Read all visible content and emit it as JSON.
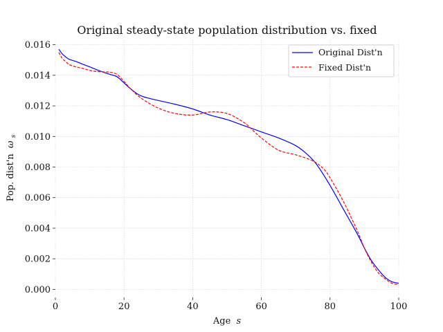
{
  "chart_data": {
    "type": "line",
    "title": "Original steady-state population distribution vs. fixed",
    "xlabel": "Age",
    "xlabel_symbol": "s",
    "ylabel": "Pop. dist'n",
    "ylabel_symbol": "ω",
    "ylabel_subscript": "s",
    "xlim": [
      0,
      100
    ],
    "ylim": [
      -0.0003,
      0.0163
    ],
    "xticks": [
      0,
      20,
      40,
      60,
      80,
      100
    ],
    "xtick_labels": [
      "0",
      "20",
      "40",
      "60",
      "80",
      "100"
    ],
    "yticks": [
      0.0,
      0.002,
      0.004,
      0.006,
      0.008,
      0.01,
      0.012,
      0.014,
      0.016
    ],
    "ytick_labels": [
      "0.000",
      "0.002",
      "0.004",
      "0.006",
      "0.008",
      "0.010",
      "0.012",
      "0.014",
      "0.016"
    ],
    "grid": true,
    "legend_position": "top-right",
    "series": [
      {
        "name": "Original Dist'n",
        "color": "#0000ff",
        "style": "solid",
        "x": [
          1,
          2,
          3,
          4,
          6,
          8,
          10,
          12,
          14,
          16,
          18,
          20,
          22,
          25,
          30,
          35,
          40,
          45,
          50,
          55,
          60,
          65,
          70,
          73,
          76,
          80,
          84,
          88,
          90,
          92,
          94,
          96,
          98,
          100
        ],
        "y": [
          0.0157,
          0.0154,
          0.0152,
          0.01505,
          0.0149,
          0.01472,
          0.01455,
          0.01437,
          0.0142,
          0.01405,
          0.0139,
          0.0135,
          0.0131,
          0.01265,
          0.01235,
          0.0121,
          0.0118,
          0.0114,
          0.0111,
          0.0107,
          0.0103,
          0.0099,
          0.0094,
          0.0089,
          0.0082,
          0.0068,
          0.0052,
          0.0036,
          0.0027,
          0.0019,
          0.0013,
          0.0008,
          0.0005,
          0.0004
        ]
      },
      {
        "name": "Fixed Dist'n",
        "color": "#ff0000",
        "style": "dashed",
        "x": [
          1,
          2,
          3,
          4,
          6,
          8,
          10,
          12,
          14,
          16,
          18,
          20,
          22,
          25,
          30,
          35,
          40,
          45,
          50,
          55,
          58,
          60,
          65,
          70,
          75,
          78,
          80,
          84,
          88,
          90,
          92,
          94,
          96,
          98,
          100
        ],
        "y": [
          0.0155,
          0.0151,
          0.0149,
          0.0147,
          0.01455,
          0.01445,
          0.01432,
          0.01425,
          0.01422,
          0.0142,
          0.01405,
          0.0136,
          0.0131,
          0.0125,
          0.01185,
          0.0115,
          0.0114,
          0.0116,
          0.0115,
          0.0109,
          0.0103,
          0.0099,
          0.0091,
          0.0088,
          0.0084,
          0.0079,
          0.0073,
          0.0057,
          0.0038,
          0.0027,
          0.0018,
          0.0011,
          0.0007,
          0.0004,
          0.0003
        ]
      }
    ]
  }
}
